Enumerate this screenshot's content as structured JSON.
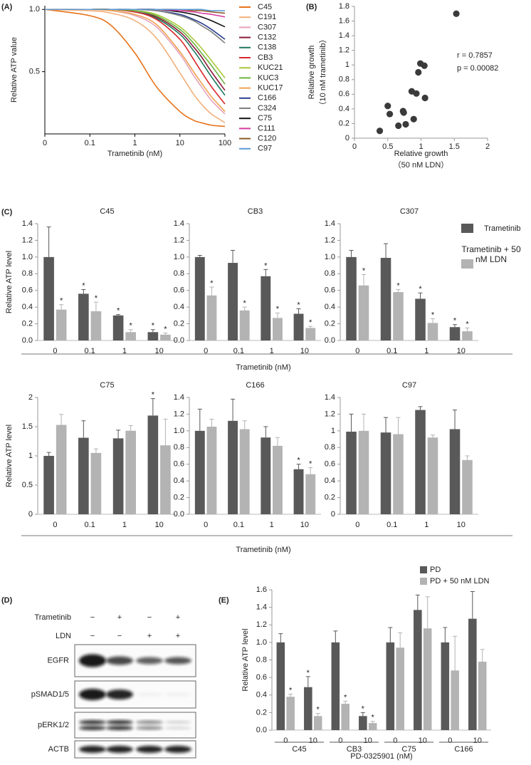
{
  "chart_data": [
    {
      "type": "line",
      "panel": "(A)",
      "xlabel": "Trametinib (nM)",
      "ylabel": "Relative ATP value",
      "logx": true,
      "x": [
        0.01,
        0.1,
        0.3,
        1,
        3,
        10,
        20,
        30,
        50,
        100
      ],
      "xlim": [
        0.01,
        100
      ],
      "xticks": [
        {
          "value": 0.01,
          "label": "0"
        },
        0.1,
        1,
        10,
        100
      ],
      "ylim": [
        0,
        1.03
      ],
      "yticks": [
        0.5,
        {
          "value": 1,
          "label": "1.0"
        }
      ],
      "series": [
        {
          "name": "C45",
          "color": "#e8731c",
          "values": [
            1.0,
            0.95,
            0.87,
            0.65,
            0.38,
            0.18,
            0.11,
            0.09,
            0.07,
            0.06
          ]
        },
        {
          "name": "C191",
          "color": "#f2b07a",
          "values": [
            1.0,
            0.99,
            0.97,
            0.91,
            0.77,
            0.49,
            0.32,
            0.24,
            0.16,
            0.09
          ]
        },
        {
          "name": "C307",
          "color": "#e5a3b8",
          "values": [
            1.0,
            1.0,
            0.99,
            0.95,
            0.86,
            0.64,
            0.47,
            0.38,
            0.27,
            0.16
          ]
        },
        {
          "name": "C132",
          "color": "#8b1a3a",
          "values": [
            1.0,
            1.0,
            1.0,
            0.98,
            0.94,
            0.82,
            0.7,
            0.62,
            0.5,
            0.35
          ]
        },
        {
          "name": "C138",
          "color": "#1f7a5e",
          "values": [
            1.0,
            1.0,
            1.0,
            0.98,
            0.93,
            0.8,
            0.67,
            0.58,
            0.46,
            0.31
          ]
        },
        {
          "name": "CB3",
          "color": "#d9262b",
          "values": [
            1.0,
            1.0,
            1.0,
            0.98,
            0.92,
            0.76,
            0.6,
            0.5,
            0.38,
            0.24
          ]
        },
        {
          "name": "KUC21",
          "color": "#a8c93a",
          "values": [
            1.0,
            1.0,
            1.0,
            0.99,
            0.96,
            0.86,
            0.76,
            0.69,
            0.59,
            0.45
          ]
        },
        {
          "name": "KUC3",
          "color": "#6cb33f",
          "values": [
            1.0,
            1.0,
            1.0,
            0.99,
            0.95,
            0.84,
            0.73,
            0.65,
            0.55,
            0.4
          ]
        },
        {
          "name": "KUC17",
          "color": "#f0a050",
          "values": [
            1.0,
            1.0,
            0.99,
            0.96,
            0.88,
            0.66,
            0.5,
            0.41,
            0.3,
            0.18
          ]
        },
        {
          "name": "C166",
          "color": "#2a3f8f",
          "values": [
            1.0,
            1.0,
            1.0,
            1.0,
            0.99,
            0.96,
            0.92,
            0.89,
            0.84,
            0.76
          ]
        },
        {
          "name": "C324",
          "color": "#808080",
          "values": [
            1.0,
            1.0,
            1.0,
            1.0,
            0.99,
            0.95,
            0.91,
            0.87,
            0.82,
            0.73
          ]
        },
        {
          "name": "C75",
          "color": "#111111",
          "values": [
            1.0,
            1.0,
            1.0,
            1.0,
            1.0,
            0.98,
            0.96,
            0.94,
            0.91,
            0.86
          ]
        },
        {
          "name": "C111",
          "color": "#d63aa0",
          "values": [
            1.0,
            1.0,
            1.0,
            1.0,
            1.0,
            0.99,
            0.98,
            0.97,
            0.96,
            0.94
          ]
        },
        {
          "name": "C120",
          "color": "#8b5a2b",
          "values": [
            1.0,
            1.0,
            1.0,
            1.0,
            1.0,
            1.0,
            0.99,
            0.99,
            0.98,
            0.97
          ]
        },
        {
          "name": "C97",
          "color": "#5b9bd5",
          "values": [
            1.0,
            1.0,
            1.0,
            1.0,
            1.0,
            1.0,
            1.0,
            1.0,
            0.99,
            0.99
          ]
        }
      ]
    },
    {
      "type": "scatter",
      "panel": "(B)",
      "xlabel": [
        "Relative growth",
        "（50 nM LDN）"
      ],
      "ylabel": [
        "Relative growth",
        "（10 nM  trametinib）"
      ],
      "annotations": [
        "r = 0.7857",
        "p = 0.00082"
      ],
      "color": "#3a3a3a",
      "x": [
        0.38,
        0.5,
        0.53,
        0.66,
        0.73,
        0.74,
        0.77,
        0.86,
        0.89,
        0.93,
        0.96,
        0.99,
        1.05,
        1.06,
        1.53
      ],
      "values": [
        0.1,
        0.44,
        0.33,
        0.17,
        0.37,
        0.35,
        0.19,
        0.64,
        0.26,
        0.61,
        0.9,
        1.02,
        0.99,
        0.55,
        1.7
      ],
      "xlim": [
        0,
        2
      ],
      "xticks": [
        0,
        0.5,
        1,
        1.5,
        2
      ],
      "ylim": [
        0,
        1.8
      ],
      "yticks": [
        0,
        0.2,
        0.4,
        0.6,
        0.8,
        1,
        1.2,
        1.4,
        1.6,
        1.8
      ]
    },
    {
      "type": "bar",
      "panel": "(C)",
      "ylabel": "Relative ATP level",
      "xlabel": "Trametinib (nM)",
      "legend": [
        {
          "name": "Trametinib",
          "color": "#595959"
        },
        {
          "name": "Trametinib + 50 nM LDN",
          "color": "#b3b3b3"
        }
      ],
      "subplots": [
        {
          "title": "C45",
          "categories": [
            "0",
            "0.1",
            "1",
            "10"
          ],
          "ylim": [
            0,
            1.4
          ],
          "yticks": [
            {
              "value": 0,
              "label": "0.0"
            },
            0.2,
            0.4,
            0.6,
            0.8,
            {
              "value": 1,
              "label": "1.0"
            },
            1.2,
            1.4
          ],
          "series": [
            {
              "values": [
                1.0,
                0.56,
                0.3,
                0.1
              ],
              "errors": [
                0.36,
                0.05,
                0.01,
                0.03
              ],
              "labels": [
                null,
                "*",
                "*",
                "*"
              ]
            },
            {
              "values": [
                0.37,
                0.35,
                0.1,
                0.07
              ],
              "errors": [
                0.06,
                0.11,
                0.03,
                0.02
              ],
              "labels": [
                "*",
                "*",
                "*",
                "*"
              ]
            }
          ]
        },
        {
          "title": "CB3",
          "categories": [
            "0",
            "0.1",
            "1",
            "10"
          ],
          "ylim": [
            0,
            1.4
          ],
          "yticks": [
            {
              "value": 0,
              "label": "0.0"
            },
            0.2,
            0.4,
            0.6,
            0.8,
            {
              "value": 1,
              "label": "1.0"
            },
            1.2,
            1.4
          ],
          "series": [
            {
              "values": [
                1.0,
                0.93,
                0.77,
                0.32
              ],
              "errors": [
                0.02,
                0.15,
                0.08,
                0.06
              ],
              "labels": [
                null,
                null,
                "*",
                "*"
              ]
            },
            {
              "values": [
                0.54,
                0.36,
                0.27,
                0.15
              ],
              "errors": [
                0.1,
                0.04,
                0.06,
                0.02
              ],
              "labels": [
                "*",
                "*",
                "*",
                "*"
              ]
            }
          ]
        },
        {
          "title": "C307",
          "categories": [
            "0",
            "0.1",
            "1",
            "10"
          ],
          "ylim": [
            0,
            1.4
          ],
          "yticks": [
            {
              "value": 0,
              "label": "0.0"
            },
            0.2,
            0.4,
            0.6,
            0.8,
            {
              "value": 1,
              "label": "1.0"
            },
            1.2,
            1.4
          ],
          "series": [
            {
              "values": [
                1.0,
                0.99,
                0.5,
                0.16
              ],
              "errors": [
                0.08,
                0.17,
                0.07,
                0.03
              ],
              "labels": [
                null,
                null,
                "*",
                "*"
              ]
            },
            {
              "values": [
                0.66,
                0.58,
                0.21,
                0.11
              ],
              "errors": [
                0.13,
                0.03,
                0.05,
                0.04
              ],
              "labels": [
                "*",
                "*",
                "*",
                "*"
              ]
            }
          ]
        },
        {
          "title": "C75",
          "categories": [
            "0",
            "0.1",
            "1",
            "10"
          ],
          "ylim": [
            0,
            2
          ],
          "yticks": [
            0,
            0.5,
            1,
            1.5,
            2
          ],
          "series": [
            {
              "values": [
                1.0,
                1.31,
                1.3,
                1.69
              ],
              "errors": [
                0.06,
                0.29,
                0.14,
                0.29
              ],
              "labels": [
                null,
                null,
                null,
                "*"
              ]
            },
            {
              "values": [
                1.53,
                1.05,
                1.43,
                1.18
              ],
              "errors": [
                0.18,
                0.07,
                0.09,
                0.45
              ],
              "labels": [
                null,
                null,
                null,
                null
              ]
            }
          ]
        },
        {
          "title": "C166",
          "categories": [
            "0",
            "0.1",
            "1",
            "10"
          ],
          "ylim": [
            0,
            1.4
          ],
          "yticks": [
            {
              "value": 0,
              "label": "0.0"
            },
            0.2,
            0.4,
            0.6,
            0.8,
            {
              "value": 1,
              "label": "1.0"
            },
            1.2,
            1.4
          ],
          "series": [
            {
              "values": [
                1.0,
                1.12,
                0.92,
                0.54
              ],
              "errors": [
                0.26,
                0.26,
                0.13,
                0.06
              ],
              "labels": [
                null,
                null,
                null,
                "*"
              ]
            },
            {
              "values": [
                1.05,
                1.02,
                0.82,
                0.48
              ],
              "errors": [
                0.09,
                0.1,
                0.1,
                0.08
              ],
              "labels": [
                null,
                null,
                null,
                "*"
              ]
            }
          ]
        },
        {
          "title": "C97",
          "categories": [
            "0",
            "0.1",
            "1",
            "10"
          ],
          "ylim": [
            0,
            1.4
          ],
          "yticks": [
            0,
            0.2,
            0.4,
            0.6,
            0.8,
            1,
            1.2,
            1.4
          ],
          "series": [
            {
              "values": [
                0.99,
                0.98,
                1.25,
                1.02
              ],
              "errors": [
                0.21,
                0.18,
                0.04,
                0.23
              ],
              "labels": [
                null,
                null,
                null,
                null
              ]
            },
            {
              "values": [
                1.0,
                0.96,
                0.92,
                0.65
              ],
              "errors": [
                0.2,
                0.2,
                0.03,
                0.05
              ],
              "labels": [
                null,
                null,
                null,
                null
              ]
            }
          ]
        }
      ]
    },
    {
      "type": "bar",
      "panel": "(E)",
      "ylabel": "Relative ATP level",
      "xlabel": "PD-0325901 (nM)",
      "groups": [
        "C45",
        "CB3",
        "C75",
        "C166"
      ],
      "categories": [
        "0",
        "10",
        "0",
        "10",
        "0",
        "10",
        "0",
        "10"
      ],
      "ylim": [
        0,
        1.6
      ],
      "yticks": [
        {
          "value": 0,
          "label": "0.0"
        },
        0.2,
        0.4,
        0.6,
        0.8,
        {
          "value": 1,
          "label": "1.0"
        },
        1.2,
        1.4,
        1.6
      ],
      "series": [
        {
          "name": "PD",
          "color": "#595959",
          "values": [
            1.0,
            0.49,
            1.0,
            0.16,
            1.0,
            1.37,
            1.0,
            1.27
          ],
          "errors": [
            0.1,
            0.12,
            0.13,
            0.04,
            0.17,
            0.17,
            0.17,
            0.31
          ],
          "labels": [
            null,
            "*",
            null,
            "*",
            null,
            null,
            null,
            null
          ]
        },
        {
          "name": "PD + 50 nM LDN",
          "color": "#b3b3b3",
          "values": [
            0.38,
            0.16,
            0.3,
            0.08,
            0.94,
            1.16,
            0.68,
            0.78
          ],
          "errors": [
            0.03,
            0.03,
            0.03,
            0.02,
            0.17,
            0.36,
            0.39,
            0.14
          ],
          "labels": [
            "*",
            "*",
            "*",
            "*",
            null,
            null,
            null,
            null
          ]
        }
      ]
    }
  ],
  "blot": {
    "panel": "(D)",
    "rows": [
      {
        "label": "Trametinib",
        "signs": [
          "−",
          "+",
          "−",
          "+"
        ]
      },
      {
        "label": "LDN",
        "signs": [
          "−",
          "−",
          "+",
          "+"
        ]
      }
    ],
    "bands": [
      "EGFR",
      "pSMAD1/5",
      "pERK1/2",
      "ACTB"
    ]
  }
}
